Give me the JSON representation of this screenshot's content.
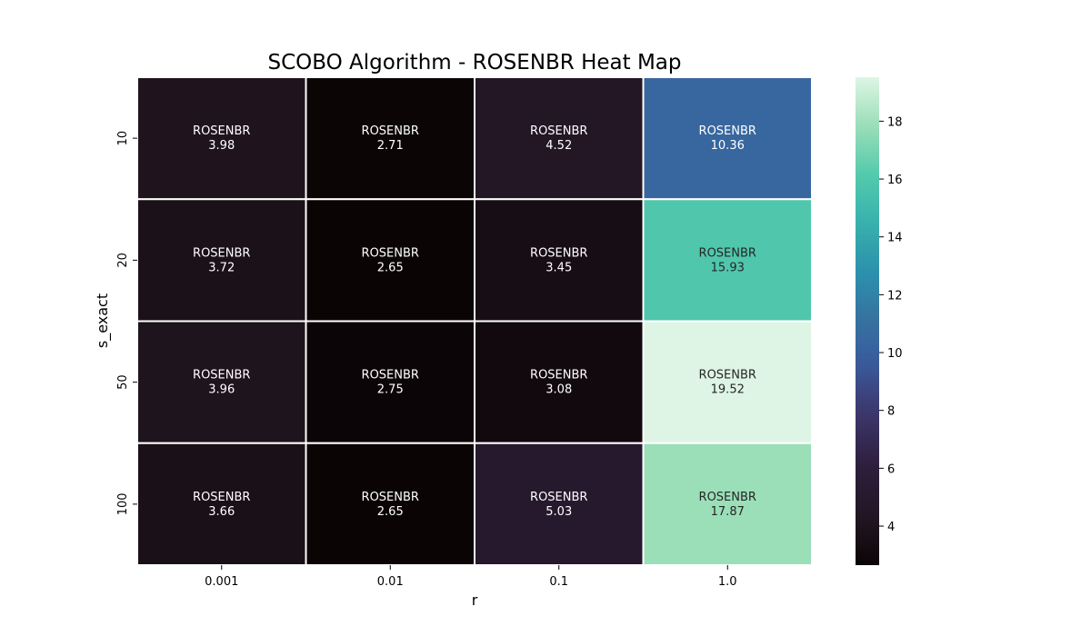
{
  "chart_data": {
    "type": "heatmap",
    "title": "SCOBO Algorithm - ROSENBR Heat Map",
    "xlabel": "r",
    "ylabel": "s_exact",
    "x_categories": [
      "0.001",
      "0.01",
      "0.1",
      "1.0"
    ],
    "y_categories": [
      "10",
      "20",
      "50",
      "100"
    ],
    "cell_label": "ROSENBR",
    "values": [
      [
        3.98,
        2.71,
        4.52,
        10.36
      ],
      [
        3.72,
        2.65,
        3.45,
        15.93
      ],
      [
        3.96,
        2.75,
        3.08,
        19.52
      ],
      [
        3.66,
        2.65,
        5.03,
        17.87
      ]
    ],
    "colorbar": {
      "range": [
        2.65,
        19.52
      ],
      "ticks": [
        "4",
        "6",
        "8",
        "10",
        "12",
        "14",
        "16",
        "18"
      ],
      "colormap": "mako"
    }
  }
}
